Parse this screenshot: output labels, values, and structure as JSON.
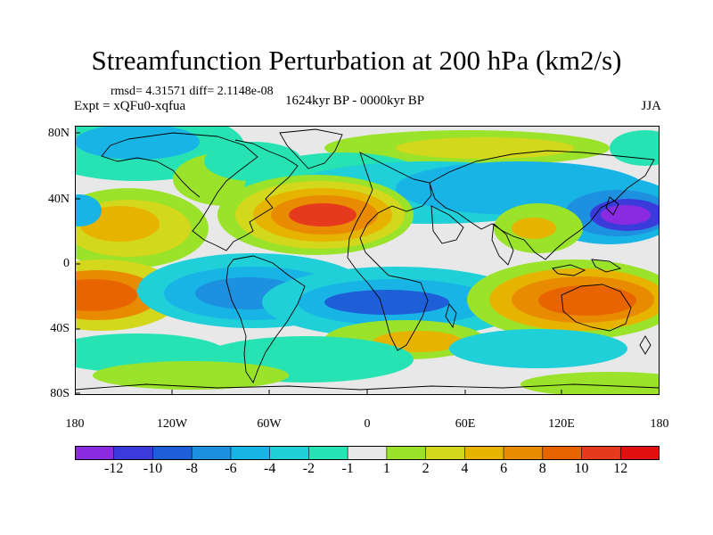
{
  "title": "Streamfunction Perturbation at 200 hPa (km2/s)",
  "stats": "rmsd= 4.31571 diff= 2.1148e-08",
  "experiment": "Expt = xQFu0-xqfua",
  "period": "1624kyr BP - 0000kyr BP",
  "season": "JJA",
  "lat_labels": [
    "80N",
    "40N",
    "0",
    "40S",
    "80S"
  ],
  "lon_labels": [
    "180",
    "120W",
    "60W",
    "0",
    "60E",
    "120E",
    "180"
  ],
  "colorbar": {
    "labels": [
      "-12",
      "-10",
      "-8",
      "-6",
      "-4",
      "-2",
      "-1",
      "1",
      "2",
      "4",
      "6",
      "8",
      "10",
      "12"
    ],
    "colors": [
      "#8a2be2",
      "#3b3bdc",
      "#1e5fd8",
      "#1e90e0",
      "#19b4e6",
      "#20d0d8",
      "#27e3b4",
      "#e8e8e8",
      "#9be22a",
      "#d4d81c",
      "#e6b400",
      "#e98b00",
      "#e86400",
      "#e63a1e",
      "#e01010"
    ]
  },
  "icon": "world-coastline-map"
}
